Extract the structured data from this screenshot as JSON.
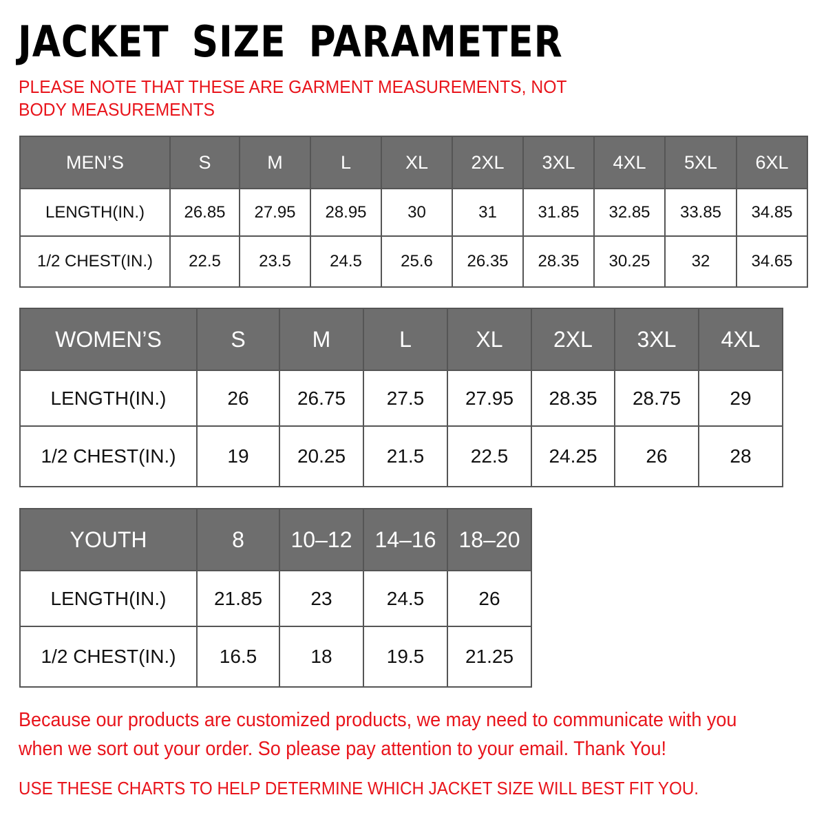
{
  "title": "JACKET SIZE PARAMETER",
  "note": "PLEASE NOTE THAT THESE ARE GARMENT MEASUREMENTS, NOT BODY MEASUREMENTS",
  "tables": [
    {
      "header": [
        "MEN’S",
        "S",
        "M",
        "L",
        "XL",
        "2XL",
        "3XL",
        "4XL",
        "5XL",
        "6XL"
      ],
      "rows": [
        [
          "LENGTH(IN.)",
          "26.85",
          "27.95",
          "28.95",
          "30",
          "31",
          "31.85",
          "32.85",
          "33.85",
          "34.85"
        ],
        [
          "1/2 CHEST(IN.)",
          "22.5",
          "23.5",
          "24.5",
          "25.6",
          "26.35",
          "28.35",
          "30.25",
          "32",
          "34.65"
        ]
      ]
    },
    {
      "header": [
        "WOMEN’S",
        "S",
        "M",
        "L",
        "XL",
        "2XL",
        "3XL",
        "4XL"
      ],
      "rows": [
        [
          "LENGTH(IN.)",
          "26",
          "26.75",
          "27.5",
          "27.95",
          "28.35",
          "28.75",
          "29"
        ],
        [
          "1/2 CHEST(IN.)",
          "19",
          "20.25",
          "21.5",
          "22.5",
          "24.25",
          "26",
          "28"
        ]
      ]
    },
    {
      "header": [
        "YOUTH",
        "8",
        "10–12",
        "14–16",
        "18–20"
      ],
      "rows": [
        [
          "LENGTH(IN.)",
          "21.85",
          "23",
          "24.5",
          "26"
        ],
        [
          "1/2 CHEST(IN.)",
          "16.5",
          "18",
          "19.5",
          "21.25"
        ]
      ]
    }
  ],
  "footer": {
    "line1": "Because our products are customized products, we may need to communicate with you",
    "line2": "when we sort out your order. So please pay attention to your email. Thank You!",
    "line3": "USE THESE CHARTS TO HELP DETERMINE WHICH JACKET SIZE WILL BEST FIT YOU."
  },
  "colors": {
    "accent_red": "#e8141b",
    "header_gray": "#6e6e6e",
    "border": "#555555"
  }
}
